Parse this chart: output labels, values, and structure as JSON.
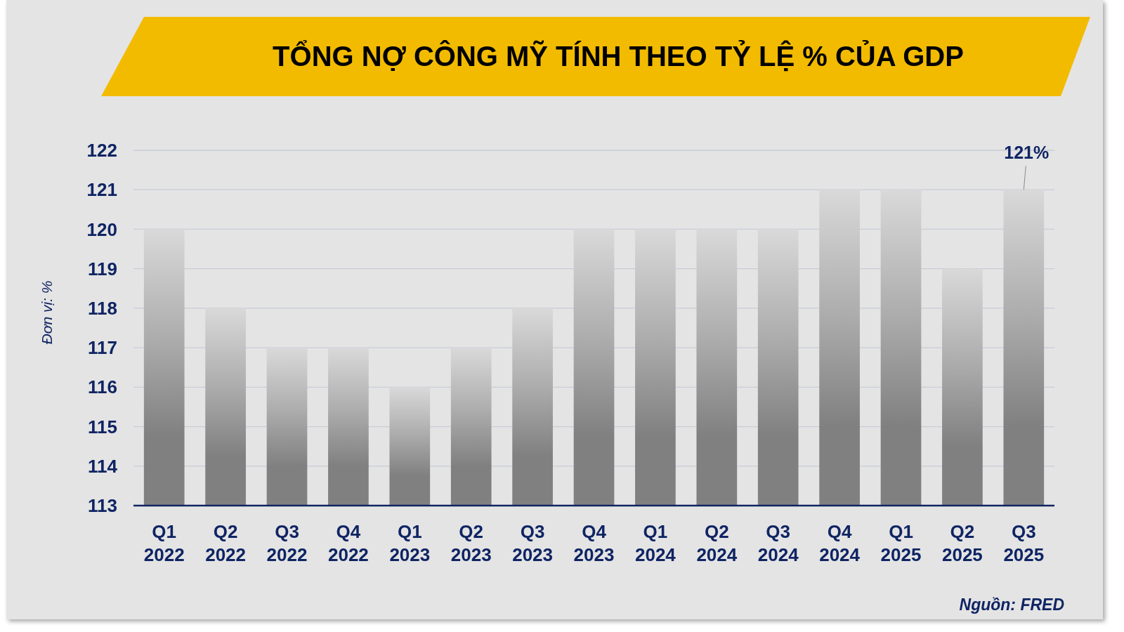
{
  "chart_data": {
    "type": "bar",
    "title": "TỔNG NỢ CÔNG MỸ TÍNH THEO TỶ LỆ % CỦA GDP",
    "ylabel": "Đơn vị: %",
    "categories": [
      "Q1 2022",
      "Q2 2022",
      "Q3 2022",
      "Q4 2022",
      "Q1 2023",
      "Q2 2023",
      "Q3 2023",
      "Q4 2023",
      "Q1 2024",
      "Q2 2024",
      "Q3 2024",
      "Q4 2024",
      "Q1 2025",
      "Q2 2025",
      "Q3 2025"
    ],
    "values": [
      120,
      118,
      117,
      117,
      116,
      117,
      118,
      120,
      120,
      120,
      120,
      121,
      121,
      119,
      121
    ],
    "color": "#808080",
    "ylim": [
      113,
      122
    ],
    "yticks": [
      113,
      114,
      115,
      116,
      117,
      118,
      119,
      120,
      121,
      122
    ],
    "grid": "y",
    "annotations": [
      {
        "text": "121%",
        "x": "Q3 2025",
        "y": 121
      },
      "Nguồn: FRED"
    ]
  }
}
